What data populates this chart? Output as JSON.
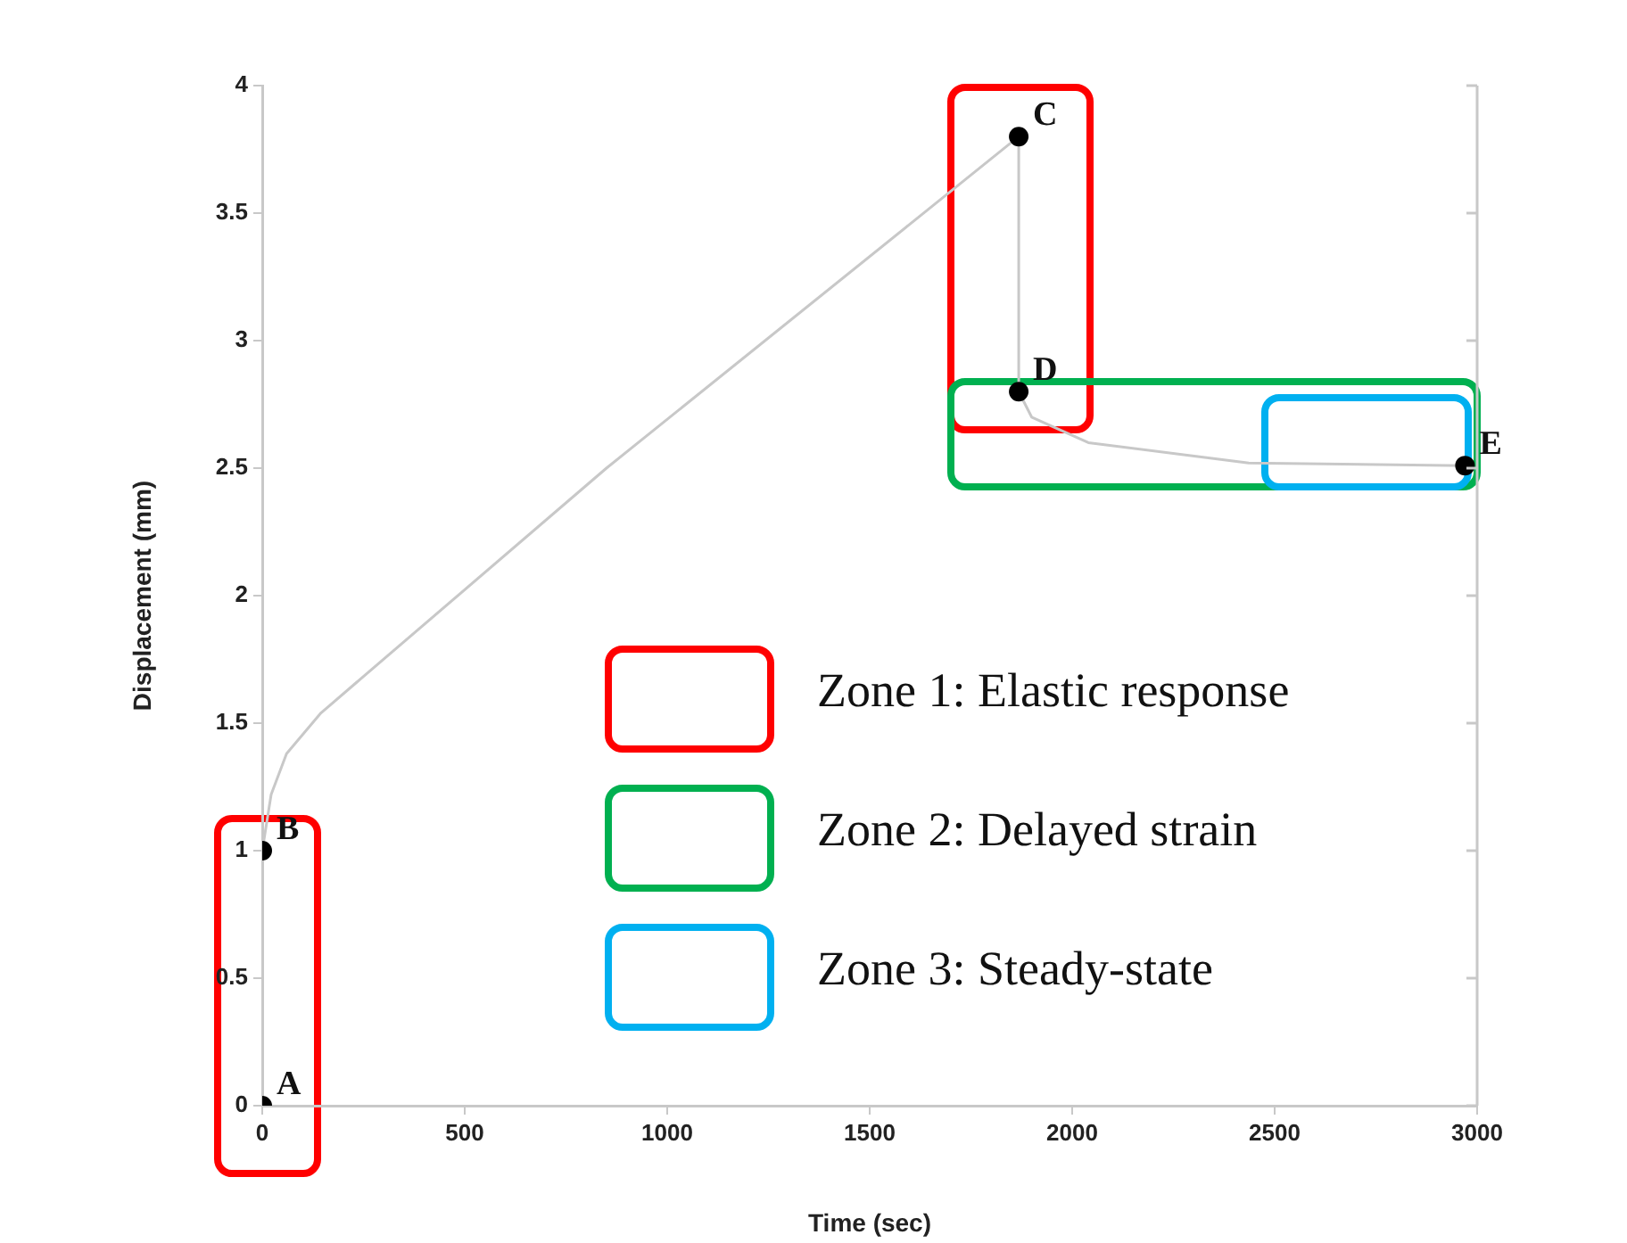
{
  "chart_data": {
    "type": "line",
    "xlabel": "Time (sec)",
    "ylabel": "Displacement (mm)",
    "xlim": [
      0,
      3000
    ],
    "xticks": [
      0,
      500,
      1000,
      1500,
      2000,
      2500,
      3000
    ],
    "ylim": [
      0,
      4
    ],
    "yticks": [
      0,
      0.5,
      1,
      1.5,
      2,
      2.5,
      3,
      3.5,
      4
    ],
    "grid": false,
    "legend": false,
    "series": [
      {
        "type": "line",
        "color": "#c8c8c8",
        "marker": "none",
        "line_style": "solid",
        "x": [
          0,
          0,
          22,
          60,
          145,
          233,
          850,
          1868,
          1868,
          1900,
          2040,
          2436,
          2970
        ],
        "values": [
          0,
          1,
          1.22,
          1.38,
          1.54,
          1.66,
          2.5,
          3.8,
          2.8,
          2.7,
          2.6,
          2.52,
          2.51
        ]
      },
      {
        "type": "scatter",
        "color": "#000000",
        "marker": "circle",
        "x": [
          0,
          0,
          1868,
          1868,
          2970
        ],
        "values": [
          0,
          1,
          3.8,
          2.8,
          2.51
        ]
      }
    ],
    "annotations": [
      {
        "text": "A",
        "x": 0,
        "y": 0
      },
      {
        "text": "B",
        "x": 0,
        "y": 1
      },
      {
        "text": "C",
        "x": 1868,
        "y": 3.8
      },
      {
        "text": "D",
        "x": 1868,
        "y": 2.8
      },
      {
        "text": "E",
        "x": 2970,
        "y": 2.51
      },
      "Zone 1: Elastic response",
      "Zone 2: Delayed strain",
      "Zone 3: Steady-state"
    ]
  }
}
